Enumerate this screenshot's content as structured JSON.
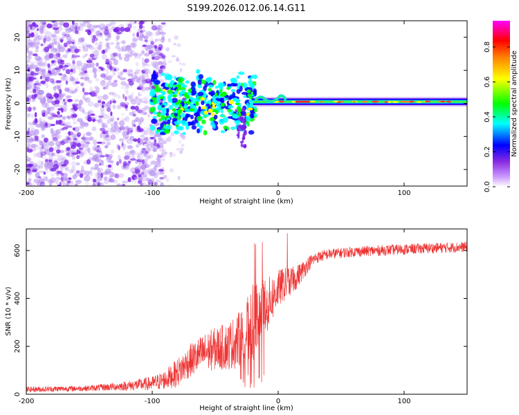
{
  "title": "S199.2026.012.06.14.G11",
  "chart_data": [
    {
      "type": "heatmap",
      "title": "S199.2026.012.06.14.G11",
      "xlabel": "Height of straight line (km)",
      "ylabel": "Frequency (Hz)",
      "xlim": [
        -200,
        150
      ],
      "ylim": [
        -25,
        25
      ],
      "xticks": [
        -200,
        -100,
        0,
        100
      ],
      "xtick_labels": [
        "-200",
        "-100",
        "0",
        "100"
      ],
      "yticks": [
        -20,
        -10,
        0,
        10,
        20
      ],
      "ytick_labels": [
        "-20",
        "-10",
        "0",
        "10",
        "20"
      ],
      "colorbar": {
        "label": "Normalized spectral amplitude",
        "range": [
          0,
          0.95
        ],
        "ticks": [
          0.0,
          0.2,
          0.4,
          0.6,
          0.8
        ],
        "tick_labels": [
          "0.0",
          "0.2",
          "0.4",
          "0.6",
          "0.8"
        ],
        "colormap": [
          "#ffffff",
          "#8a2be2",
          "#0000ff",
          "#00ffff",
          "#00ff00",
          "#ffff00",
          "#ff8000",
          "#ff0000",
          "#ff00ff"
        ]
      },
      "description_points": {
        "noise_region_x": [
          -200,
          -100
        ],
        "ridge_center_freq": 0,
        "signal_start_x": -20
      }
    },
    {
      "type": "line",
      "xlabel": "Height of straight line (km)",
      "ylabel": "SNR (10 * v/v)",
      "xlim": [
        -200,
        150
      ],
      "ylim": [
        0,
        690
      ],
      "xticks": [
        -200,
        -100,
        0,
        100
      ],
      "xtick_labels": [
        "-200",
        "-100",
        "0",
        "100"
      ],
      "yticks": [
        0,
        200,
        400,
        600
      ],
      "ytick_labels": [
        "0",
        "200",
        "400",
        "600"
      ],
      "color": "#ee3333",
      "envelope": {
        "x": [
          -200,
          -150,
          -120,
          -100,
          -90,
          -80,
          -70,
          -60,
          -50,
          -40,
          -30,
          -25,
          -20,
          -15,
          -10,
          -5,
          0,
          5,
          10,
          15,
          20,
          25,
          30,
          40,
          50,
          60,
          80,
          100,
          120,
          150
        ],
        "y": [
          20,
          25,
          35,
          45,
          60,
          90,
          140,
          170,
          190,
          200,
          230,
          260,
          300,
          330,
          360,
          400,
          440,
          460,
          470,
          490,
          520,
          550,
          570,
          585,
          590,
          595,
          600,
          605,
          610,
          615
        ],
        "spread": [
          12,
          12,
          20,
          30,
          40,
          60,
          70,
          80,
          90,
          100,
          120,
          140,
          160,
          150,
          120,
          100,
          80,
          70,
          60,
          50,
          40,
          30,
          25,
          22,
          22,
          22,
          22,
          22,
          22,
          22
        ]
      }
    }
  ]
}
